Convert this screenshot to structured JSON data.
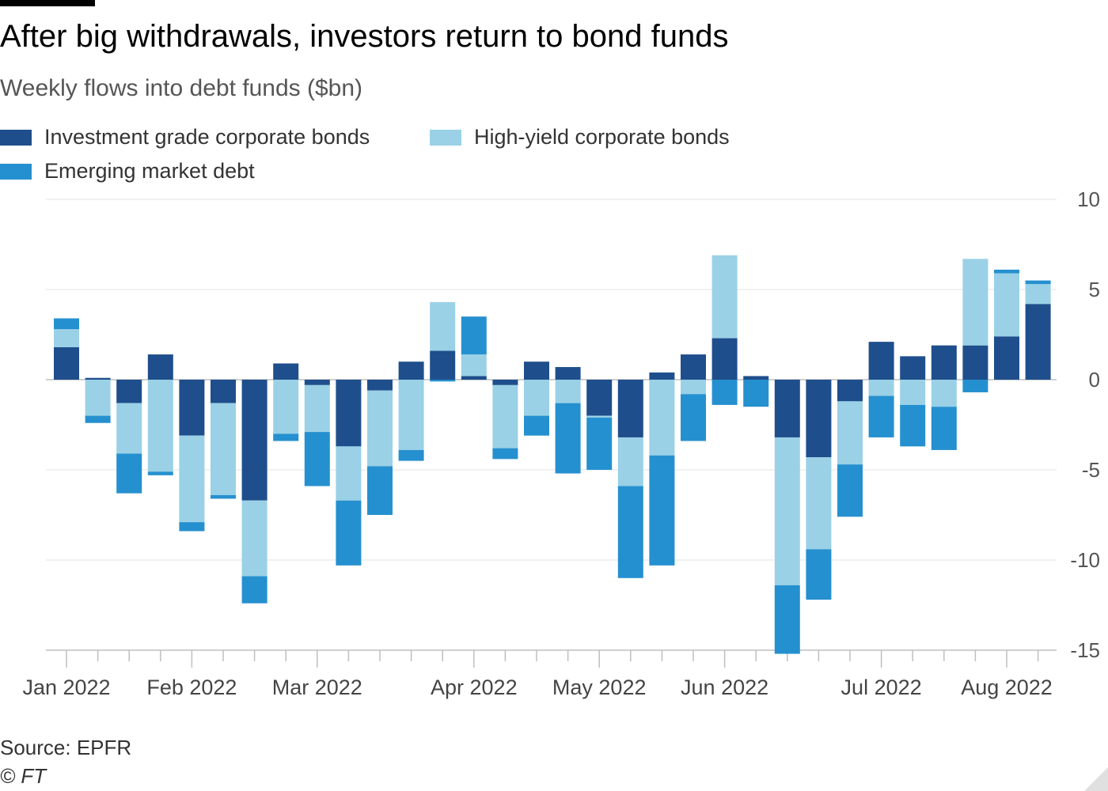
{
  "header": {
    "title": "After big withdrawals, investors return to bond funds",
    "subtitle": "Weekly flows into debt funds ($bn)"
  },
  "legend": [
    {
      "label": "Investment grade corporate bonds",
      "color": "#1f4e8c"
    },
    {
      "label": "High-yield corporate bonds",
      "color": "#9ad1e6"
    },
    {
      "label": "Emerging market debt",
      "color": "#2590cf"
    }
  ],
  "footer": {
    "source": "Source: EPFR",
    "copyright": "© FT"
  },
  "chart_data": {
    "type": "bar",
    "stacked": true,
    "ylim": [
      -15,
      10
    ],
    "yticks": [
      10,
      5,
      0,
      -5,
      -10,
      -15
    ],
    "ytick_labels": [
      "10",
      "5",
      "0",
      "-5",
      "-10",
      "-15"
    ],
    "month_labels": [
      {
        "label": "Jan 2022",
        "week_index": 0
      },
      {
        "label": "Feb 2022",
        "week_index": 4
      },
      {
        "label": "Mar 2022",
        "week_index": 8
      },
      {
        "label": "Apr 2022",
        "week_index": 13
      },
      {
        "label": "May 2022",
        "week_index": 17
      },
      {
        "label": "Jun 2022",
        "week_index": 21
      },
      {
        "label": "Jul 2022",
        "week_index": 26
      },
      {
        "label": "Aug 2022",
        "week_index": 30
      }
    ],
    "weeks": 32,
    "series": [
      {
        "name": "Investment grade corporate bonds",
        "color": "#1f4e8c",
        "values": [
          1.8,
          0.1,
          -1.3,
          1.4,
          -3.1,
          -1.3,
          -6.7,
          0.9,
          -0.3,
          -3.7,
          -0.6,
          1.0,
          1.6,
          0.2,
          -0.3,
          1.0,
          0.7,
          -2.0,
          -3.2,
          0.4,
          1.4,
          2.3,
          0.2,
          -3.2,
          -4.3,
          -1.2,
          2.1,
          1.3,
          1.9,
          1.9,
          2.4,
          4.2
        ]
      },
      {
        "name": "High-yield corporate bonds",
        "color": "#9ad1e6",
        "values": [
          1.0,
          -2.0,
          -2.8,
          -5.1,
          -4.8,
          -5.1,
          -4.2,
          -3.0,
          -2.6,
          -3.0,
          -4.2,
          -3.9,
          2.7,
          1.2,
          -3.5,
          -2.0,
          -1.3,
          -0.1,
          -2.7,
          -4.2,
          -0.8,
          4.6,
          0.0,
          -8.2,
          -5.1,
          -3.5,
          -0.9,
          -1.4,
          -1.5,
          4.8,
          3.5,
          1.1
        ]
      },
      {
        "name": "Emerging market debt",
        "color": "#2590cf",
        "values": [
          0.6,
          -0.4,
          -2.2,
          -0.2,
          -0.5,
          -0.2,
          -1.5,
          -0.4,
          -3.0,
          -3.6,
          -2.7,
          -0.6,
          -0.1,
          2.1,
          -0.6,
          -1.1,
          -3.9,
          -2.9,
          -5.1,
          -6.1,
          -2.6,
          -1.4,
          -1.5,
          -3.8,
          -2.8,
          -2.9,
          -2.3,
          -2.3,
          -2.4,
          -0.7,
          0.2,
          0.2
        ]
      }
    ]
  }
}
